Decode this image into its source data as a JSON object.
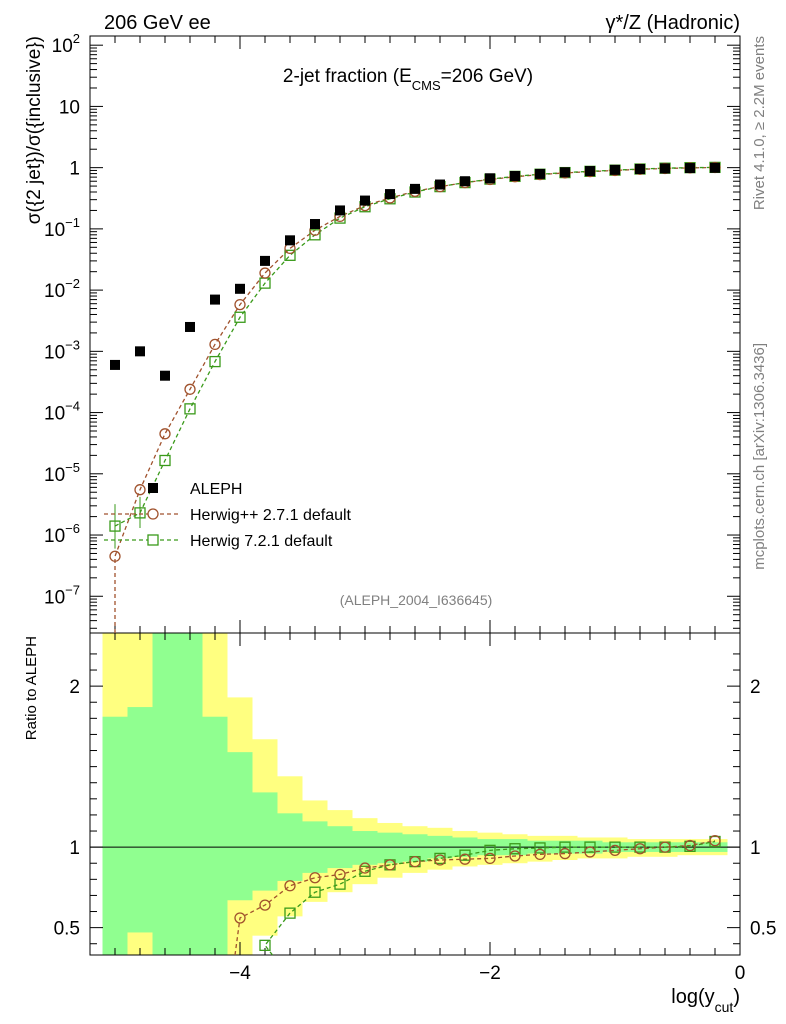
{
  "header": {
    "left": "206 GeV ee",
    "right": "γ*/Z (Hadronic)"
  },
  "side": {
    "rivet": "Rivet 4.1.0, ≥ 2.2M events",
    "mcplots": "mcplots.cern.ch [arXiv:1306.3436]"
  },
  "chart_data": {
    "type": "scatter",
    "title": "2-jet fraction (E_CMS=206 GeV)",
    "title_parts": {
      "main": "2-jet fraction (E",
      "sub": "CMS",
      "tail": "=206 GeV)"
    },
    "analysis_tag": "(ALEPH_2004_I636645)",
    "xlabel_parts": {
      "main": "log(y",
      "sub": "cut",
      "tail": ")"
    },
    "ylabel_top": "σ({2 jet})/σ({inclusive})",
    "ylabel_bottom": "Ratio to ALEPH",
    "xlim": [
      -5.2,
      0
    ],
    "ylim_top_log10": [
      -7.6,
      2.15
    ],
    "ylim_bottom": [
      0.33,
      2.33
    ],
    "x_ticks": [
      -4,
      -2,
      0
    ],
    "x_tick_labels": [
      "−4",
      "−2",
      "0"
    ],
    "y_ticks_top": [
      {
        "base": "10",
        "exp": "2",
        "v": 2
      },
      {
        "base": "10",
        "exp": "",
        "v": 1
      },
      {
        "base": "1",
        "exp": "",
        "v": 0
      },
      {
        "base": "10",
        "exp": "−1",
        "v": -1
      },
      {
        "base": "10",
        "exp": "−2",
        "v": -2
      },
      {
        "base": "10",
        "exp": "−3",
        "v": -3
      },
      {
        "base": "10",
        "exp": "−4",
        "v": -4
      },
      {
        "base": "10",
        "exp": "−5",
        "v": -5
      },
      {
        "base": "10",
        "exp": "−6",
        "v": -6
      },
      {
        "base": "10",
        "exp": "−7",
        "v": -7
      }
    ],
    "y_ticks_bottom": [
      {
        "label": "0.5",
        "v": 0.5
      },
      {
        "label": "1",
        "v": 1
      },
      {
        "label": "2",
        "v": 2
      }
    ],
    "legend": [
      {
        "label": "ALEPH",
        "marker": "square-filled",
        "color": "#000000"
      },
      {
        "label": "Herwig++ 2.7.1 default",
        "marker": "circle-open",
        "color": "#a0522d"
      },
      {
        "label": "Herwig 7.2.1 default",
        "marker": "square-open",
        "color": "#3a9a1a"
      }
    ],
    "bin_edges": [
      -5.1,
      -4.9,
      -4.7,
      -4.5,
      -4.3,
      -4.1,
      -3.9,
      -3.7,
      -3.5,
      -3.3,
      -3.1,
      -2.9,
      -2.7,
      -2.5,
      -2.3,
      -2.1,
      -1.9,
      -1.7,
      -1.5,
      -1.3,
      -1.1,
      -0.9,
      -0.7,
      -0.5,
      -0.3,
      -0.1
    ],
    "x": [
      -5.0,
      -4.8,
      -4.6,
      -4.4,
      -4.2,
      -4.0,
      -3.8,
      -3.6,
      -3.4,
      -3.2,
      -3.0,
      -2.8,
      -2.6,
      -2.4,
      -2.2,
      -2.0,
      -1.8,
      -1.6,
      -1.4,
      -1.2,
      -1.0,
      -0.8,
      -0.6,
      -0.4,
      -0.2
    ],
    "series": [
      {
        "name": "ALEPH",
        "color": "#000000",
        "values": [
          0.0006,
          0.001,
          0.0004,
          0.0025,
          0.007,
          0.0105,
          0.03,
          0.065,
          0.12,
          0.2,
          0.29,
          0.37,
          0.45,
          0.53,
          0.6,
          0.67,
          0.73,
          0.79,
          0.84,
          0.88,
          0.92,
          0.95,
          0.97,
          0.985,
          0.995
        ]
      },
      {
        "name": "Herwig++ 2.7.1 default",
        "color": "#a0522d",
        "values": [
          4.5e-07,
          5.5e-06,
          4.5e-05,
          0.00024,
          0.0013,
          0.0058,
          0.019,
          0.048,
          0.095,
          0.16,
          0.24,
          0.32,
          0.41,
          0.49,
          0.57,
          0.64,
          0.71,
          0.77,
          0.82,
          0.86,
          0.9,
          0.94,
          0.97,
          0.99,
          1.005
        ],
        "ratio": [
          null,
          null,
          null,
          null,
          null,
          0.56,
          0.64,
          0.76,
          0.81,
          0.83,
          0.87,
          0.89,
          0.91,
          0.92,
          0.925,
          0.93,
          0.945,
          0.955,
          0.96,
          0.97,
          0.98,
          0.99,
          1.0,
          1.01,
          1.04
        ]
      },
      {
        "name": "Herwig 7.2.1 default",
        "color": "#3a9a1a",
        "values": [
          1.4e-06,
          2.3e-06,
          1.65e-05,
          0.000115,
          0.00068,
          0.0036,
          0.013,
          0.037,
          0.08,
          0.15,
          0.23,
          0.31,
          0.4,
          0.49,
          0.57,
          0.65,
          0.72,
          0.78,
          0.83,
          0.87,
          0.91,
          0.95,
          0.98,
          1.0,
          1.01
        ],
        "ratio": [
          null,
          null,
          null,
          null,
          null,
          null,
          0.39,
          0.59,
          0.72,
          0.77,
          0.85,
          0.89,
          0.91,
          0.93,
          0.95,
          0.98,
          0.99,
          0.995,
          1.0,
          1.0,
          1.0,
          1.0,
          1.0,
          1.005,
          1.035
        ]
      }
    ],
    "band_yellow": [
      [
        0.33,
        2.33
      ],
      [
        0.33,
        2.33
      ],
      [
        0.33,
        2.33
      ],
      [
        0.33,
        2.33
      ],
      [
        0.33,
        2.33
      ],
      [
        0.33,
        1.93
      ],
      [
        0.45,
        1.67
      ],
      [
        0.57,
        1.44
      ],
      [
        0.66,
        1.29
      ],
      [
        0.72,
        1.23
      ],
      [
        0.77,
        1.18
      ],
      [
        0.81,
        1.15
      ],
      [
        0.84,
        1.13
      ],
      [
        0.86,
        1.12
      ],
      [
        0.88,
        1.1
      ],
      [
        0.89,
        1.09
      ],
      [
        0.9,
        1.08
      ],
      [
        0.91,
        1.07
      ],
      [
        0.92,
        1.07
      ],
      [
        0.93,
        1.06
      ],
      [
        0.93,
        1.06
      ],
      [
        0.94,
        1.05
      ],
      [
        0.94,
        1.05
      ],
      [
        0.95,
        1.05
      ],
      [
        0.95,
        1.05
      ]
    ],
    "band_green": [
      [
        0.33,
        1.81
      ],
      [
        0.47,
        1.87
      ],
      [
        0.33,
        2.33
      ],
      [
        0.33,
        2.33
      ],
      [
        0.33,
        1.81
      ],
      [
        0.67,
        1.59
      ],
      [
        0.73,
        1.34
      ],
      [
        0.79,
        1.21
      ],
      [
        0.84,
        1.16
      ],
      [
        0.87,
        1.13
      ],
      [
        0.89,
        1.1
      ],
      [
        0.9,
        1.09
      ],
      [
        0.91,
        1.08
      ],
      [
        0.93,
        1.07
      ],
      [
        0.94,
        1.06
      ],
      [
        0.95,
        1.05
      ],
      [
        0.95,
        1.05
      ],
      [
        0.96,
        1.04
      ],
      [
        0.96,
        1.04
      ],
      [
        0.96,
        1.04
      ],
      [
        0.97,
        1.03
      ],
      [
        0.97,
        1.03
      ],
      [
        0.97,
        1.03
      ],
      [
        0.97,
        1.03
      ],
      [
        0.97,
        1.03
      ]
    ],
    "green_gap_bins": [
      [
        0.47,
        0.33
      ]
    ]
  }
}
